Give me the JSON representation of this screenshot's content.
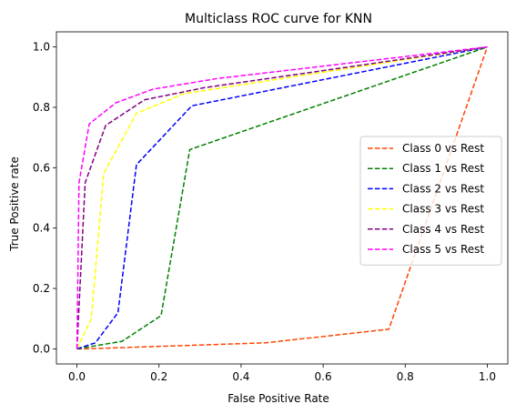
{
  "chart_data": {
    "type": "line",
    "title": "Multiclass ROC curve for KNN",
    "xlabel": "False Positive Rate",
    "ylabel": "True Positive rate",
    "xlim": [
      -0.05,
      1.05
    ],
    "ylim": [
      -0.05,
      1.05
    ],
    "xticks": [
      0.0,
      0.2,
      0.4,
      0.6,
      0.8,
      1.0
    ],
    "yticks": [
      0.0,
      0.2,
      0.4,
      0.6,
      0.8,
      1.0
    ],
    "xtick_labels": [
      "0.0",
      "0.2",
      "0.4",
      "0.6",
      "0.8",
      "1.0"
    ],
    "ytick_labels": [
      "0.0",
      "0.2",
      "0.4",
      "0.6",
      "0.8",
      "1.0"
    ],
    "grid": false,
    "legend_position": "center-right",
    "line_style": "dashed",
    "series": [
      {
        "name": "Class 0 vs Rest",
        "color": "#ff4500",
        "x": [
          0.0,
          0.02,
          0.46,
          0.76,
          1.0
        ],
        "y": [
          0.0,
          0.0,
          0.02,
          0.065,
          1.0
        ]
      },
      {
        "name": "Class 1 vs Rest",
        "color": "#008000",
        "x": [
          0.0,
          0.11,
          0.205,
          0.275,
          1.0
        ],
        "y": [
          0.0,
          0.025,
          0.11,
          0.66,
          1.0
        ]
      },
      {
        "name": "Class 2 vs Rest",
        "color": "#0000ff",
        "x": [
          0.0,
          0.045,
          0.1,
          0.145,
          0.28,
          1.0
        ],
        "y": [
          0.0,
          0.02,
          0.12,
          0.61,
          0.805,
          1.0
        ]
      },
      {
        "name": "Class 3 vs Rest",
        "color": "#ffff00",
        "x": [
          0.0,
          0.035,
          0.065,
          0.145,
          0.26,
          1.0
        ],
        "y": [
          0.0,
          0.1,
          0.58,
          0.78,
          0.845,
          1.0
        ]
      },
      {
        "name": "Class 4 vs Rest",
        "color": "#800080",
        "x": [
          0.0,
          0.02,
          0.07,
          0.165,
          0.31,
          1.0
        ],
        "y": [
          0.0,
          0.55,
          0.74,
          0.825,
          0.865,
          1.0
        ]
      },
      {
        "name": "Class 5 vs Rest",
        "color": "#ff00ff",
        "x": [
          0.0,
          0.005,
          0.03,
          0.095,
          0.185,
          0.34,
          1.0
        ],
        "y": [
          0.0,
          0.55,
          0.745,
          0.815,
          0.86,
          0.895,
          1.0
        ]
      }
    ]
  }
}
